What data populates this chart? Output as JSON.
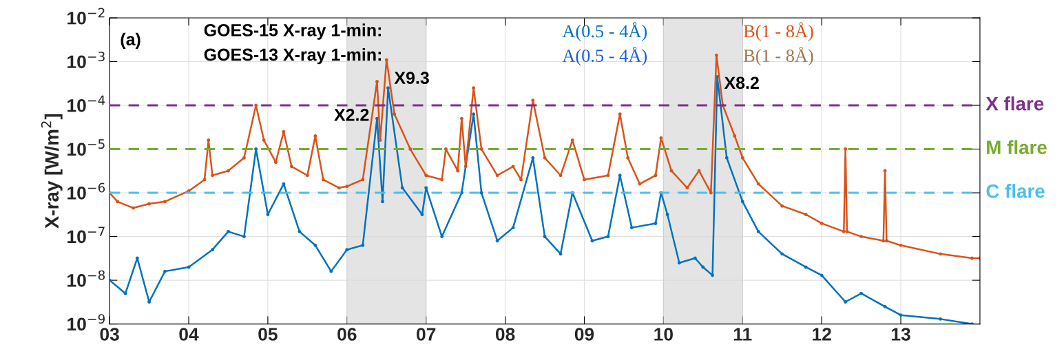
{
  "chart_data": {
    "type": "line",
    "ylabel": "X-ray [W/m$^{2}$]",
    "legend_title": "GOES-15 X-ray 1-min:",
    "legend": "top",
    "grid": true,
    "log": "y",
    "marker": "circle",
    "line_style": "solid",
    "xlim": [
      3,
      14
    ],
    "xticks": [
      {
        "value": 3,
        "label": "03"
      },
      {
        "value": 4,
        "label": "04"
      },
      {
        "value": 5,
        "label": "05"
      },
      {
        "value": 6,
        "label": "06"
      },
      {
        "value": 7,
        "label": "07"
      },
      {
        "value": 8,
        "label": "08"
      },
      {
        "value": 9,
        "label": "09"
      },
      {
        "value": 10,
        "label": "10"
      },
      {
        "value": 11,
        "label": "11"
      },
      {
        "value": 12,
        "label": "12"
      },
      {
        "value": 13,
        "label": "13"
      }
    ],
    "ylim": [
      1e-09,
      0.01
    ],
    "yticks": [
      {
        "value": 1e-09,
        "label": "10$^{−9}$"
      },
      {
        "value": 1e-08,
        "label": "10$^{−8}$"
      },
      {
        "value": 1e-07,
        "label": "10$^{−7}$"
      },
      {
        "value": 1e-06,
        "label": "10$^{−6}$"
      },
      {
        "value": 1e-05,
        "label": "10$^{−5}$"
      },
      {
        "value": 0.0001,
        "label": "10$^{−4}$"
      },
      {
        "value": 0.001,
        "label": "10$^{−3}$"
      },
      {
        "value": 0.01,
        "label": "10$^{−2}$"
      }
    ],
    "series": [
      {
        "name": "A(0.5 - 4Å)",
        "color": "#0072bd",
        "x": [
          3.0,
          3.2,
          3.35,
          3.5,
          3.7,
          4.0,
          4.3,
          4.5,
          4.7,
          4.85,
          5.0,
          5.2,
          5.4,
          5.6,
          5.8,
          6.0,
          6.2,
          6.38,
          6.45,
          6.52,
          6.7,
          6.95,
          7.0,
          7.2,
          7.45,
          7.6,
          7.7,
          7.9,
          8.1,
          8.35,
          8.5,
          8.7,
          8.85,
          9.1,
          9.3,
          9.45,
          9.6,
          9.9,
          9.97,
          10.05,
          10.2,
          10.4,
          10.5,
          10.62,
          10.68,
          10.8,
          11.0,
          11.2,
          11.5,
          11.8,
          12.0,
          12.3,
          12.5,
          12.8,
          13.0,
          13.5,
          13.9
        ],
        "values": [
          1e-08,
          5e-09,
          3.2e-08,
          3.2e-09,
          1.6e-08,
          2e-08,
          5e-08,
          1.3e-07,
          1e-07,
          1e-05,
          3.2e-07,
          1.6e-06,
          1.3e-07,
          6.3e-08,
          1.6e-08,
          5e-08,
          6.3e-08,
          5e-05,
          6.3e-07,
          0.00025,
          1.3e-06,
          3.2e-07,
          1.3e-06,
          1e-07,
          1e-06,
          6.3e-05,
          1e-06,
          8e-08,
          1.6e-07,
          6.3e-06,
          1e-07,
          4e-08,
          1e-06,
          8e-08,
          1e-07,
          2.5e-06,
          1.6e-07,
          2e-07,
          1e-06,
          3.2e-07,
          2.5e-08,
          3.2e-08,
          2e-08,
          1.3e-08,
          0.00045,
          6.3e-06,
          6.3e-07,
          1.3e-07,
          4e-08,
          2e-08,
          1.3e-08,
          3.2e-09,
          5e-09,
          2.5e-09,
          1.6e-09,
          1.3e-09,
          1e-09
        ]
      },
      {
        "name": "B(1 - 8Å)",
        "color": "#d95319",
        "x": [
          3.0,
          3.1,
          3.3,
          3.5,
          3.7,
          4.0,
          4.2,
          4.25,
          4.3,
          4.5,
          4.7,
          4.85,
          4.95,
          5.1,
          5.2,
          5.3,
          5.5,
          5.6,
          5.7,
          5.9,
          6.0,
          6.2,
          6.38,
          6.42,
          6.5,
          6.6,
          6.8,
          7.0,
          7.2,
          7.25,
          7.4,
          7.45,
          7.5,
          7.6,
          7.7,
          7.9,
          8.1,
          8.2,
          8.35,
          8.5,
          8.7,
          8.85,
          9.0,
          9.3,
          9.45,
          9.55,
          9.7,
          9.9,
          9.97,
          10.1,
          10.3,
          10.45,
          10.6,
          10.67,
          10.75,
          10.9,
          11.0,
          11.2,
          11.5,
          11.8,
          12.0,
          12.28,
          12.3,
          12.32,
          12.5,
          12.78,
          12.8,
          12.82,
          13.0,
          13.5,
          13.9,
          14.0
        ],
        "values": [
          1e-06,
          6.3e-07,
          4.5e-07,
          5.6e-07,
          6.3e-07,
          1.1e-06,
          2e-06,
          1.6e-05,
          2.5e-06,
          3.2e-06,
          6.3e-06,
          0.0001,
          1.6e-05,
          5e-06,
          2.5e-05,
          4e-06,
          2.5e-06,
          2e-05,
          2e-06,
          1.3e-06,
          1.4e-06,
          2e-06,
          0.00035,
          1.6e-05,
          0.0011,
          6.3e-05,
          1e-05,
          2.5e-06,
          2e-06,
          1e-05,
          3.2e-06,
          5e-05,
          4e-06,
          0.00025,
          1e-05,
          2.5e-06,
          4e-06,
          2e-06,
          0.00013,
          6.3e-06,
          2.5e-06,
          1.6e-05,
          2e-06,
          2.5e-06,
          6.3e-05,
          6.3e-06,
          1.6e-06,
          2.5e-06,
          1.8e-05,
          3.2e-06,
          1.3e-06,
          3.2e-06,
          1e-06,
          0.0014,
          0.0001,
          2e-05,
          6.3e-06,
          1.6e-06,
          5e-07,
          3.2e-07,
          2e-07,
          1.3e-07,
          1e-05,
          1.3e-07,
          1e-07,
          8e-08,
          3.2e-06,
          8e-08,
          6.3e-08,
          4e-08,
          3.2e-08,
          3.2e-08
        ]
      }
    ],
    "ref_lines": [
      {
        "axis": "y",
        "value": 0.0001,
        "label": "X flare",
        "color": "#7e2f8e",
        "line_style": "dashed"
      },
      {
        "axis": "y",
        "value": 1e-05,
        "label": "M flare",
        "color": "#77ac30",
        "line_style": "dashed"
      },
      {
        "axis": "y",
        "value": 1e-06,
        "label": "C flare",
        "color": "#4dbeee",
        "line_style": "dashed"
      }
    ],
    "bands": [
      {
        "axis": "x",
        "from": 6,
        "to": 7,
        "color": "#d9d9d9"
      },
      {
        "axis": "x",
        "from": 10,
        "to": 11,
        "color": "#d9d9d9"
      }
    ],
    "annotations": [
      "(a)",
      "GOES-13 X-ray 1-min:",
      "A(0.5 - 4Å)",
      "B(1 - 8Å)",
      {
        "text": "X2.2",
        "x": 6.38,
        "y": 0.00035
      },
      {
        "text": "X9.3",
        "x": 6.5,
        "y": 0.0011
      },
      {
        "text": "X8.2",
        "x": 10.67,
        "y": 0.0014
      }
    ]
  }
}
